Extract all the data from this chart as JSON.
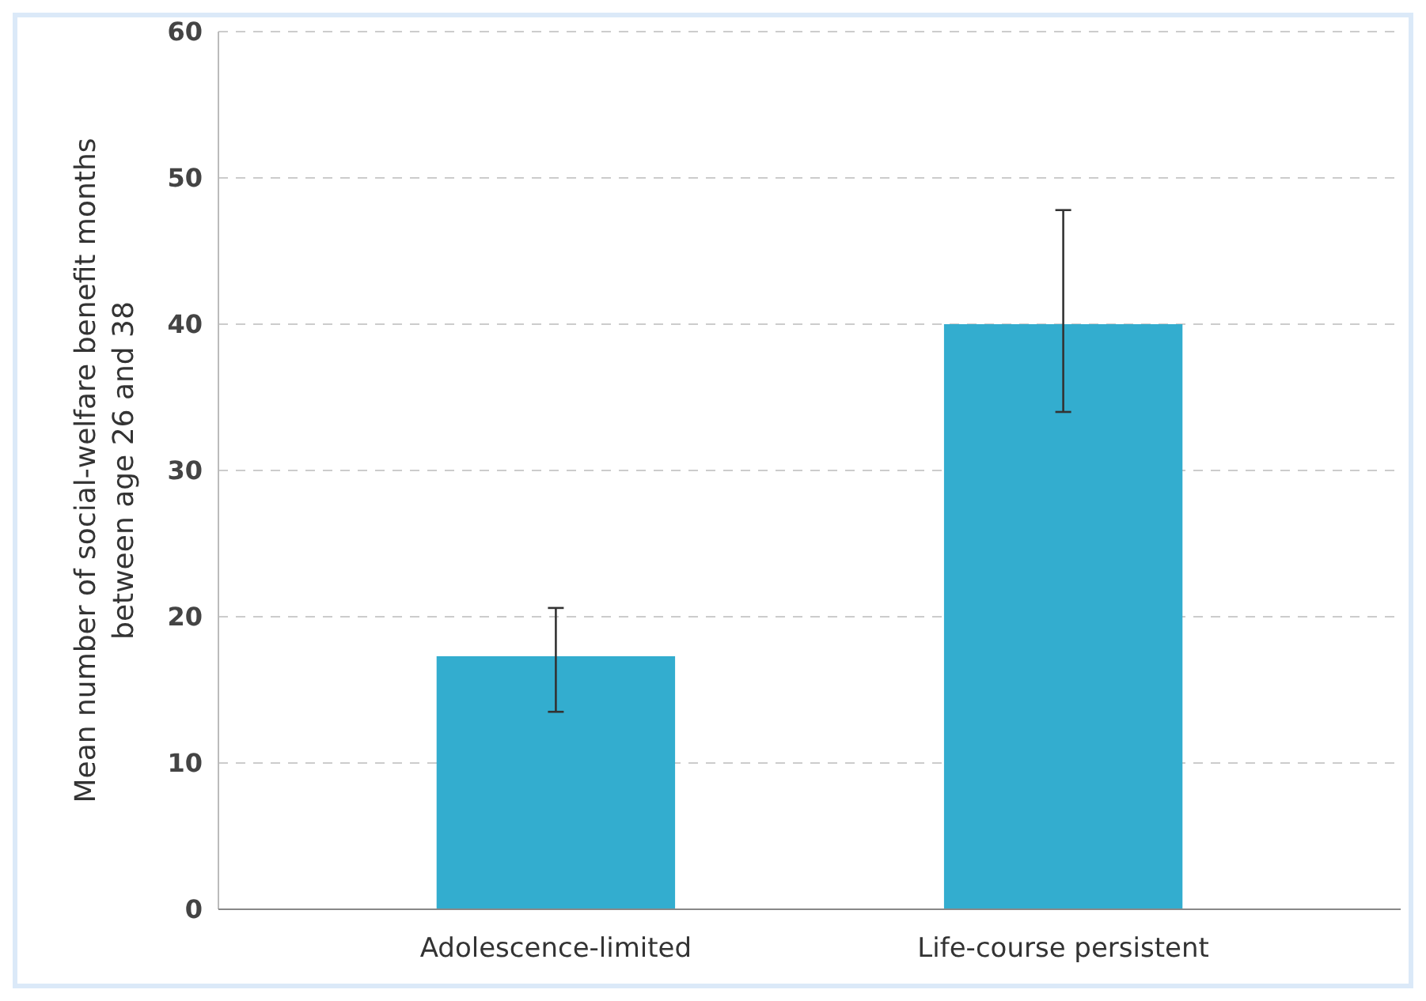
{
  "chart_data": {
    "type": "bar",
    "ylabel": "Mean number of social-welfare benefit months\nbetween age 26 and 38",
    "categories": [
      "Adolescence-limited",
      "Life-course persistent"
    ],
    "values": [
      17.3,
      40
    ],
    "errors": [
      [
        13.5,
        20.6
      ],
      [
        34,
        47.8
      ]
    ],
    "color": "#33adcf",
    "ylim": [
      0,
      60
    ],
    "yticks": [
      0,
      10,
      20,
      30,
      40,
      50,
      60
    ],
    "grid": "y"
  }
}
